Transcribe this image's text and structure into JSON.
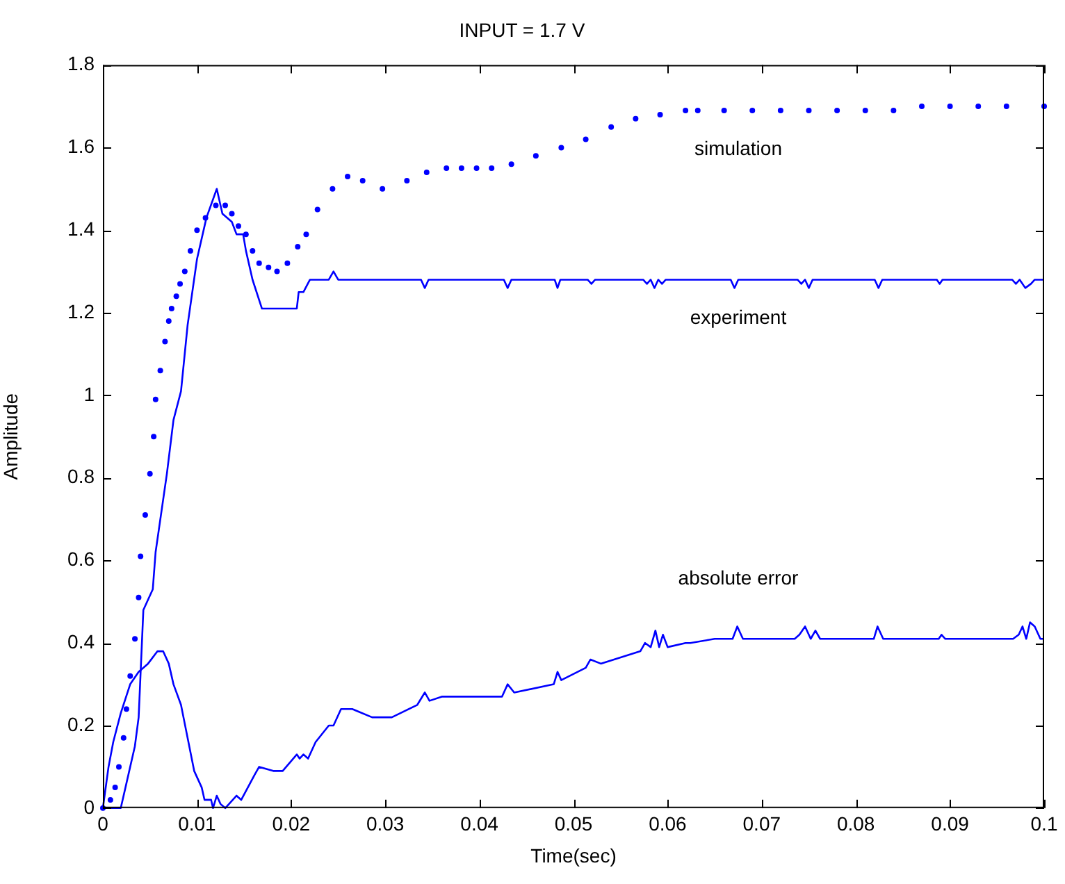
{
  "chart_data": {
    "type": "line",
    "title": "INPUT = 1.7 V",
    "xlabel": "Time(sec)",
    "ylabel": "Amplitude",
    "xlim": [
      0,
      0.1
    ],
    "xticks": [
      0,
      0.01,
      0.02,
      0.03,
      0.04,
      0.05,
      0.06,
      0.07,
      0.08,
      0.09,
      0.1
    ],
    "ylim": [
      0,
      1.8
    ],
    "yticks": [
      0,
      0.2,
      0.4,
      0.6,
      0.8,
      1,
      1.2,
      1.4,
      1.6,
      1.8
    ],
    "series": [
      {
        "type": "scatter",
        "name": "simulation",
        "marker": "circle",
        "color": "#0000ff",
        "x": [
          0,
          0.0008,
          0.0013,
          0.0017,
          0.0022,
          0.0025,
          0.0029,
          0.0034,
          0.0038,
          0.004,
          0.0045,
          0.005,
          0.0054,
          0.0056,
          0.0061,
          0.0066,
          0.007,
          0.0073,
          0.0078,
          0.0082,
          0.0087,
          0.0093,
          0.01,
          0.0109,
          0.012,
          0.013,
          0.0137,
          0.0144,
          0.0152,
          0.0159,
          0.0166,
          0.0176,
          0.0185,
          0.0196,
          0.0207,
          0.0216,
          0.0228,
          0.0244,
          0.026,
          0.0276,
          0.0297,
          0.0323,
          0.0344,
          0.0365,
          0.0381,
          0.0397,
          0.0413,
          0.0434,
          0.046,
          0.0487,
          0.0513,
          0.054,
          0.0566,
          0.0592,
          0.0619,
          0.0632,
          0.066,
          0.069,
          0.072,
          0.075,
          0.078,
          0.081,
          0.084,
          0.087,
          0.09,
          0.093,
          0.096,
          0.1
        ],
        "values": [
          0,
          0.02,
          0.05,
          0.1,
          0.17,
          0.24,
          0.32,
          0.41,
          0.51,
          0.61,
          0.71,
          0.81,
          0.9,
          0.99,
          1.06,
          1.13,
          1.18,
          1.21,
          1.24,
          1.27,
          1.3,
          1.35,
          1.4,
          1.43,
          1.46,
          1.46,
          1.44,
          1.41,
          1.39,
          1.35,
          1.32,
          1.31,
          1.3,
          1.32,
          1.36,
          1.39,
          1.45,
          1.5,
          1.53,
          1.52,
          1.5,
          1.52,
          1.54,
          1.55,
          1.55,
          1.55,
          1.55,
          1.56,
          1.58,
          1.6,
          1.62,
          1.65,
          1.67,
          1.68,
          1.69,
          1.69,
          1.69,
          1.69,
          1.69,
          1.69,
          1.69,
          1.69,
          1.69,
          1.7,
          1.7,
          1.7,
          1.7,
          1.7
        ]
      },
      {
        "type": "line",
        "name": "experiment",
        "marker": "none",
        "color": "#0000ff",
        "x": [
          0,
          0.0019,
          0.0024,
          0.0034,
          0.0038,
          0.0043,
          0.0053,
          0.0056,
          0.0068,
          0.0075,
          0.0083,
          0.009,
          0.01,
          0.011,
          0.0121,
          0.0127,
          0.0137,
          0.0142,
          0.0149,
          0.0152,
          0.0159,
          0.0169,
          0.0206,
          0.0208,
          0.0213,
          0.022,
          0.024,
          0.0245,
          0.025,
          0.0338,
          0.0342,
          0.0346,
          0.0426,
          0.043,
          0.0434,
          0.048,
          0.0483,
          0.0486,
          0.0515,
          0.0519,
          0.0523,
          0.0574,
          0.0578,
          0.0582,
          0.0586,
          0.059,
          0.0594,
          0.0598,
          0.0667,
          0.0671,
          0.0675,
          0.0738,
          0.0742,
          0.0746,
          0.075,
          0.0754,
          0.082,
          0.0824,
          0.0828,
          0.0886,
          0.0889,
          0.0892,
          0.0966,
          0.097,
          0.0974,
          0.098,
          0.0986,
          0.099,
          0.1
        ],
        "values": [
          0,
          0,
          0.05,
          0.15,
          0.22,
          0.48,
          0.53,
          0.62,
          0.81,
          0.94,
          1.01,
          1.17,
          1.33,
          1.43,
          1.5,
          1.44,
          1.42,
          1.39,
          1.39,
          1.35,
          1.28,
          1.21,
          1.21,
          1.25,
          1.25,
          1.28,
          1.28,
          1.3,
          1.28,
          1.28,
          1.26,
          1.28,
          1.28,
          1.26,
          1.28,
          1.28,
          1.26,
          1.28,
          1.28,
          1.27,
          1.28,
          1.28,
          1.27,
          1.28,
          1.26,
          1.28,
          1.27,
          1.28,
          1.28,
          1.26,
          1.28,
          1.28,
          1.27,
          1.28,
          1.26,
          1.28,
          1.28,
          1.26,
          1.28,
          1.28,
          1.27,
          1.28,
          1.28,
          1.27,
          1.28,
          1.26,
          1.27,
          1.28,
          1.28
        ]
      },
      {
        "type": "line",
        "name": "absolute error",
        "marker": "none",
        "color": "#0000ff",
        "x": [
          0,
          0.0006,
          0.0011,
          0.0019,
          0.0029,
          0.0038,
          0.0048,
          0.0058,
          0.0064,
          0.007,
          0.0075,
          0.0083,
          0.009,
          0.0097,
          0.0105,
          0.0108,
          0.0115,
          0.0117,
          0.0121,
          0.0125,
          0.013,
          0.0142,
          0.0147,
          0.0161,
          0.0166,
          0.0181,
          0.0191,
          0.0206,
          0.0209,
          0.0213,
          0.0218,
          0.0226,
          0.024,
          0.0245,
          0.0253,
          0.0265,
          0.0286,
          0.0307,
          0.0334,
          0.0342,
          0.0347,
          0.036,
          0.0413,
          0.0424,
          0.043,
          0.0437,
          0.0479,
          0.0483,
          0.0487,
          0.0513,
          0.0518,
          0.0529,
          0.0571,
          0.0576,
          0.0582,
          0.0587,
          0.0591,
          0.0595,
          0.06,
          0.0619,
          0.0624,
          0.065,
          0.0669,
          0.0674,
          0.068,
          0.0735,
          0.074,
          0.0746,
          0.0752,
          0.0757,
          0.0762,
          0.0819,
          0.0823,
          0.0829,
          0.0832,
          0.0888,
          0.0891,
          0.0895,
          0.0932,
          0.0938,
          0.0967,
          0.0973,
          0.0977,
          0.0981,
          0.0985,
          0.099,
          0.0996,
          0.1
        ],
        "values": [
          0,
          0.1,
          0.16,
          0.23,
          0.3,
          0.33,
          0.35,
          0.38,
          0.38,
          0.35,
          0.3,
          0.25,
          0.17,
          0.09,
          0.05,
          0.02,
          0.02,
          0,
          0.03,
          0.01,
          0,
          0.03,
          0.02,
          0.08,
          0.1,
          0.09,
          0.09,
          0.13,
          0.12,
          0.13,
          0.12,
          0.16,
          0.2,
          0.2,
          0.24,
          0.24,
          0.22,
          0.22,
          0.25,
          0.28,
          0.26,
          0.27,
          0.27,
          0.27,
          0.3,
          0.28,
          0.3,
          0.33,
          0.31,
          0.34,
          0.36,
          0.35,
          0.38,
          0.4,
          0.39,
          0.43,
          0.39,
          0.42,
          0.39,
          0.4,
          0.4,
          0.41,
          0.41,
          0.44,
          0.41,
          0.41,
          0.42,
          0.44,
          0.41,
          0.43,
          0.41,
          0.41,
          0.44,
          0.41,
          0.41,
          0.41,
          0.42,
          0.41,
          0.41,
          0.41,
          0.41,
          0.42,
          0.44,
          0.41,
          0.45,
          0.44,
          0.41,
          0.41
        ]
      }
    ]
  }
}
